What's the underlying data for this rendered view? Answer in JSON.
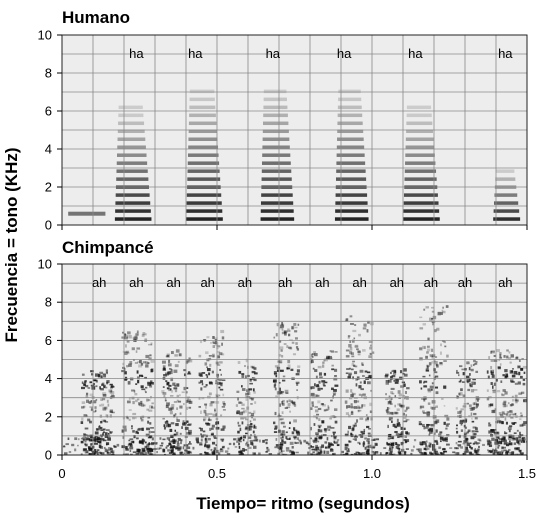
{
  "chart_data": [
    {
      "type": "heatmap",
      "title": "Humano",
      "x_range": [
        0,
        1.5
      ],
      "x_ticks": [
        0,
        0.5,
        1.0,
        1.5
      ],
      "y_range": [
        0,
        10
      ],
      "y_ticks": [
        0,
        2,
        4,
        6,
        8,
        10
      ],
      "grid": true,
      "syllable_label": "ha",
      "syllables": [
        {
          "label": "ha",
          "x": 0.24,
          "start": 0.17,
          "end": 0.29,
          "max_freq": 6.2
        },
        {
          "label": "ha",
          "x": 0.43,
          "start": 0.4,
          "end": 0.52,
          "max_freq": 7.2
        },
        {
          "label": "ha",
          "x": 0.68,
          "start": 0.64,
          "end": 0.75,
          "max_freq": 7.3
        },
        {
          "label": "ha",
          "x": 0.91,
          "start": 0.88,
          "end": 0.99,
          "max_freq": 7.2
        },
        {
          "label": "ha",
          "x": 1.14,
          "start": 1.1,
          "end": 1.22,
          "max_freq": 6.2
        },
        {
          "label": "ha",
          "x": 1.43,
          "start": 1.39,
          "end": 1.48,
          "max_freq": 3.0
        }
      ]
    },
    {
      "type": "heatmap",
      "title": "Chimpancé",
      "x_range": [
        0,
        1.5
      ],
      "x_ticks": [
        0,
        0.5,
        1.0,
        1.5
      ],
      "x_tick_labels": [
        "0",
        "0.5",
        "1.0",
        "1.5"
      ],
      "y_range": [
        0,
        10
      ],
      "y_ticks": [
        0,
        2,
        4,
        6,
        8,
        10
      ],
      "grid": true,
      "syllable_label": "ah",
      "syllables": [
        {
          "label": "ah",
          "x": 0.12,
          "start": 0.06,
          "end": 0.16,
          "max_freq": 4.5
        },
        {
          "label": "ah",
          "x": 0.24,
          "start": 0.19,
          "end": 0.29,
          "max_freq": 6.5
        },
        {
          "label": "ah",
          "x": 0.36,
          "start": 0.32,
          "end": 0.41,
          "max_freq": 5.5
        },
        {
          "label": "ah",
          "x": 0.47,
          "start": 0.44,
          "end": 0.52,
          "max_freq": 6.5
        },
        {
          "label": "ah",
          "x": 0.59,
          "start": 0.56,
          "end": 0.62,
          "max_freq": 5.0
        },
        {
          "label": "ah",
          "x": 0.72,
          "start": 0.68,
          "end": 0.76,
          "max_freq": 7.0
        },
        {
          "label": "ah",
          "x": 0.84,
          "start": 0.8,
          "end": 0.88,
          "max_freq": 5.5
        },
        {
          "label": "ah",
          "x": 0.96,
          "start": 0.91,
          "end": 1.0,
          "max_freq": 7.3
        },
        {
          "label": "ah",
          "x": 1.08,
          "start": 1.04,
          "end": 1.11,
          "max_freq": 4.5
        },
        {
          "label": "ah",
          "x": 1.19,
          "start": 1.15,
          "end": 1.24,
          "max_freq": 7.8
        },
        {
          "label": "ah",
          "x": 1.3,
          "start": 1.27,
          "end": 1.34,
          "max_freq": 5.0
        },
        {
          "label": "ah",
          "x": 1.43,
          "start": 1.37,
          "end": 1.49,
          "max_freq": 5.5
        }
      ]
    }
  ],
  "axes": {
    "ylabel": "Frecuencia = tono (KHz)",
    "xlabel": "Tiempo= ritmo (segundos)"
  },
  "colors": {
    "background": "#ffffff",
    "panel": "#ededed",
    "grid": "#888888",
    "energy": "#111111"
  }
}
